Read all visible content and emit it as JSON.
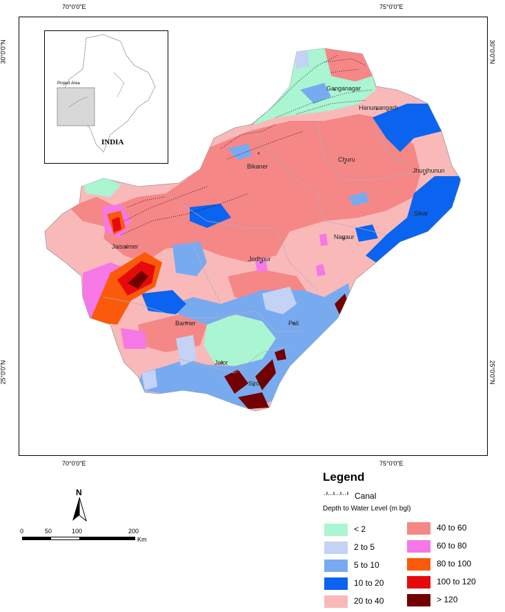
{
  "graticule": {
    "lon_top": [
      "70°0'0\"E",
      "75°0'0\"E"
    ],
    "lon_bottom": [
      "70°0'0\"E",
      "75°0'0\"E"
    ],
    "lat_left": [
      "30°0'0\"N",
      "25°0'0\"N"
    ],
    "lat_right": [
      "30°0'0\"N",
      "25°0'0\"N"
    ]
  },
  "inset": {
    "project_area_label": "Project Area",
    "country_label": "INDIA"
  },
  "cities": [
    "Ganganagar",
    "Hanumangarh",
    "Bikaner",
    "Churu",
    "Jhunjhunun",
    "Sikar",
    "Nagaur",
    "Jaisalmer",
    "Jodhpur",
    "Barmer",
    "Pali",
    "Jalor",
    "Sirohi"
  ],
  "north_arrow": {
    "label": "N"
  },
  "scale_bar": {
    "ticks": [
      "0",
      "50",
      "100",
      "200"
    ],
    "unit": "Km"
  },
  "legend": {
    "title": "Legend",
    "canal_label": "Canal",
    "subtitle": "Depth to Water Level (m bgl)",
    "classes": [
      {
        "label": "< 2",
        "color": "#aaf5d2"
      },
      {
        "label": "2 to 5",
        "color": "#c3d2f5"
      },
      {
        "label": "5 to 10",
        "color": "#78aaf0"
      },
      {
        "label": "10 to 20",
        "color": "#0a64f0"
      },
      {
        "label": "20 to 40",
        "color": "#fab9b9"
      },
      {
        "label": "40 to 60",
        "color": "#f58787"
      },
      {
        "label": "60 to 80",
        "color": "#f578e6"
      },
      {
        "label": "80 to 100",
        "color": "#fa5a0a"
      },
      {
        "label": "100 to 120",
        "color": "#e60a0a"
      },
      {
        "label": "> 120",
        "color": "#730000"
      }
    ]
  }
}
